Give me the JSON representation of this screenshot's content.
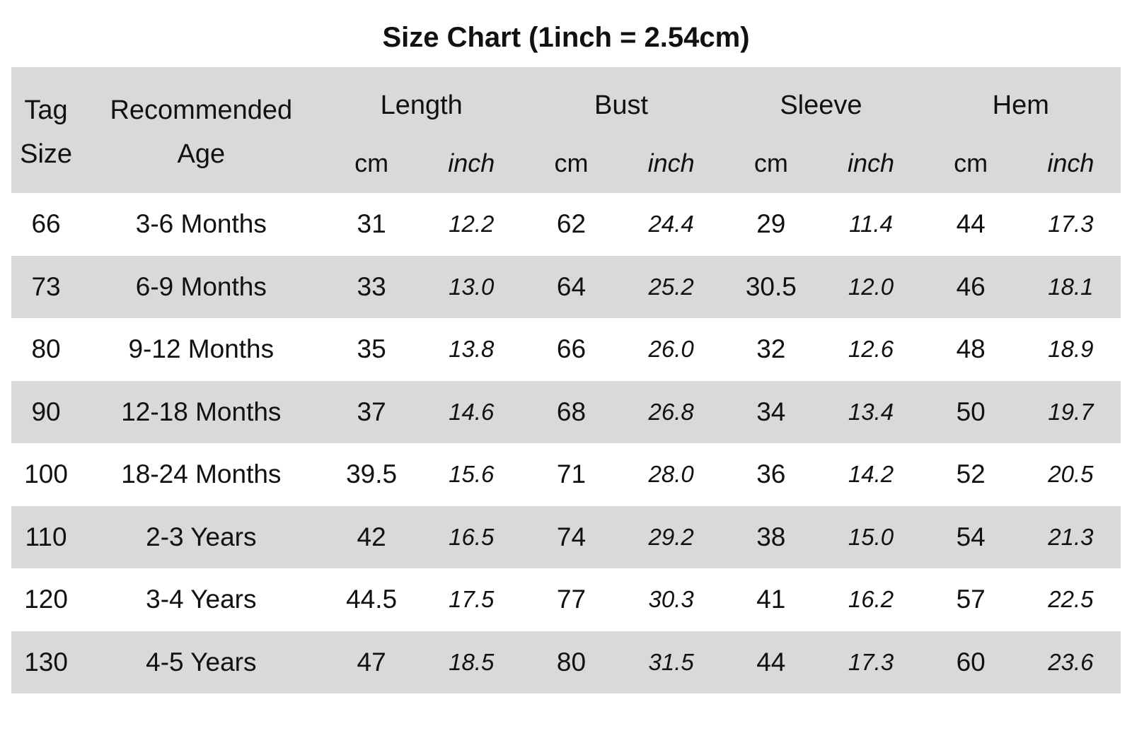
{
  "title": "Size Chart (1inch = 2.54cm)",
  "headers": {
    "tag_size": [
      "Tag",
      "Size"
    ],
    "recommended_age": [
      "Recommended",
      "Age"
    ],
    "groups": [
      "Length",
      "Bust",
      "Sleeve",
      "Hem"
    ],
    "unit_cm": "cm",
    "unit_inch": "inch"
  },
  "rows": [
    {
      "tag": "66",
      "age": "3-6 Months",
      "length_cm": "31",
      "length_in": "12.2",
      "bust_cm": "62",
      "bust_in": "24.4",
      "sleeve_cm": "29",
      "sleeve_in": "11.4",
      "hem_cm": "44",
      "hem_in": "17.3"
    },
    {
      "tag": "73",
      "age": "6-9 Months",
      "length_cm": "33",
      "length_in": "13.0",
      "bust_cm": "64",
      "bust_in": "25.2",
      "sleeve_cm": "30.5",
      "sleeve_in": "12.0",
      "hem_cm": "46",
      "hem_in": "18.1"
    },
    {
      "tag": "80",
      "age": "9-12 Months",
      "length_cm": "35",
      "length_in": "13.8",
      "bust_cm": "66",
      "bust_in": "26.0",
      "sleeve_cm": "32",
      "sleeve_in": "12.6",
      "hem_cm": "48",
      "hem_in": "18.9"
    },
    {
      "tag": "90",
      "age": "12-18 Months",
      "length_cm": "37",
      "length_in": "14.6",
      "bust_cm": "68",
      "bust_in": "26.8",
      "sleeve_cm": "34",
      "sleeve_in": "13.4",
      "hem_cm": "50",
      "hem_in": "19.7"
    },
    {
      "tag": "100",
      "age": "18-24 Months",
      "length_cm": "39.5",
      "length_in": "15.6",
      "bust_cm": "71",
      "bust_in": "28.0",
      "sleeve_cm": "36",
      "sleeve_in": "14.2",
      "hem_cm": "52",
      "hem_in": "20.5"
    },
    {
      "tag": "110",
      "age": "2-3 Years",
      "length_cm": "42",
      "length_in": "16.5",
      "bust_cm": "74",
      "bust_in": "29.2",
      "sleeve_cm": "38",
      "sleeve_in": "15.0",
      "hem_cm": "54",
      "hem_in": "21.3"
    },
    {
      "tag": "120",
      "age": "3-4 Years",
      "length_cm": "44.5",
      "length_in": "17.5",
      "bust_cm": "77",
      "bust_in": "30.3",
      "sleeve_cm": "41",
      "sleeve_in": "16.2",
      "hem_cm": "57",
      "hem_in": "22.5"
    },
    {
      "tag": "130",
      "age": "4-5 Years",
      "length_cm": "47",
      "length_in": "18.5",
      "bust_cm": "80",
      "bust_in": "31.5",
      "sleeve_cm": "44",
      "sleeve_in": "17.3",
      "hem_cm": "60",
      "hem_in": "23.6"
    }
  ],
  "colors": {
    "header_background": "#d9d9d9",
    "stripe_background": "#d9d9d9",
    "text": "#111111"
  }
}
